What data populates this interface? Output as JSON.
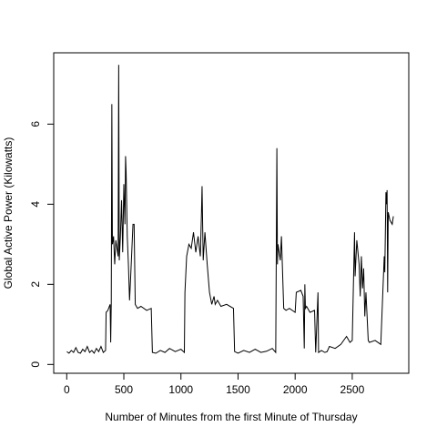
{
  "chart_data": {
    "type": "line",
    "xlabel": "Number of Minutes from the first Minute of Thursday",
    "ylabel": "Global Active Power (Kilowatts)",
    "x": [
      1,
      20,
      40,
      60,
      80,
      100,
      120,
      140,
      160,
      180,
      200,
      220,
      240,
      260,
      280,
      300,
      320,
      340,
      345,
      360,
      380,
      385,
      390,
      395,
      400,
      410,
      420,
      430,
      440,
      450,
      455,
      460,
      470,
      480,
      490,
      500,
      510,
      515,
      520,
      530,
      540,
      550,
      560,
      580,
      590,
      600,
      620,
      650,
      700,
      740,
      750,
      780,
      820,
      860,
      900,
      950,
      1000,
      1030,
      1035,
      1050,
      1070,
      1090,
      1110,
      1130,
      1150,
      1170,
      1180,
      1185,
      1195,
      1210,
      1230,
      1250,
      1270,
      1290,
      1300,
      1320,
      1350,
      1400,
      1460,
      1470,
      1500,
      1550,
      1600,
      1650,
      1700,
      1750,
      1800,
      1830,
      1840,
      1845,
      1850,
      1870,
      1880,
      1890,
      1900,
      1920,
      1950,
      2000,
      2010,
      2050,
      2070,
      2080,
      2085,
      2090,
      2100,
      2130,
      2170,
      2180,
      2200,
      2205,
      2230,
      2260,
      2280,
      2300,
      2350,
      2400,
      2450,
      2480,
      2500,
      2520,
      2525,
      2540,
      2560,
      2570,
      2580,
      2590,
      2600,
      2610,
      2620,
      2640,
      2650,
      2700,
      2750,
      2780,
      2785,
      2795,
      2800,
      2805,
      2810,
      2815,
      2830,
      2850,
      2860
    ],
    "series": [
      {
        "name": "Global Active Power",
        "color": "#000000",
        "values": [
          0.32,
          0.28,
          0.35,
          0.3,
          0.42,
          0.3,
          0.28,
          0.38,
          0.32,
          0.45,
          0.3,
          0.35,
          0.28,
          0.4,
          0.32,
          0.45,
          0.3,
          0.35,
          1.3,
          1.35,
          1.5,
          0.55,
          1.55,
          6.5,
          3.0,
          3.2,
          2.5,
          3.1,
          2.9,
          2.7,
          7.48,
          2.6,
          3.2,
          4.1,
          2.8,
          4.5,
          3.5,
          5.2,
          4.8,
          3.2,
          2.5,
          1.6,
          2.2,
          3.5,
          3.5,
          1.5,
          1.4,
          1.45,
          1.35,
          1.4,
          0.3,
          0.28,
          0.35,
          0.3,
          0.4,
          0.32,
          0.38,
          0.3,
          1.8,
          2.7,
          3.0,
          2.9,
          3.3,
          2.8,
          3.2,
          2.7,
          3.8,
          4.45,
          2.6,
          3.3,
          2.5,
          1.8,
          1.5,
          1.7,
          1.5,
          1.6,
          1.45,
          1.5,
          1.4,
          0.32,
          0.28,
          0.35,
          0.3,
          0.38,
          0.3,
          0.33,
          0.4,
          0.3,
          5.4,
          2.5,
          3.0,
          2.6,
          3.2,
          2.3,
          1.4,
          1.35,
          1.4,
          1.3,
          1.8,
          1.85,
          1.7,
          0.4,
          2.0,
          1.4,
          1.45,
          1.3,
          1.35,
          0.3,
          1.8,
          0.3,
          0.35,
          0.3,
          0.32,
          0.45,
          0.4,
          0.5,
          0.7,
          0.55,
          0.6,
          3.3,
          2.2,
          3.1,
          2.5,
          1.7,
          2.7,
          1.9,
          2.4,
          1.2,
          1.8,
          0.6,
          0.55,
          0.6,
          0.5,
          2.7,
          2.3,
          4.3,
          4.0,
          4.35,
          1.8,
          3.8,
          3.6,
          3.5,
          3.7
        ]
      }
    ],
    "xlim": [
      -114,
      2995
    ],
    "ylim": [
      -0.22,
      7.78
    ],
    "xticks": [
      0,
      500,
      1000,
      1500,
      2000,
      2500
    ],
    "yticks": [
      0,
      2,
      4,
      6
    ]
  }
}
